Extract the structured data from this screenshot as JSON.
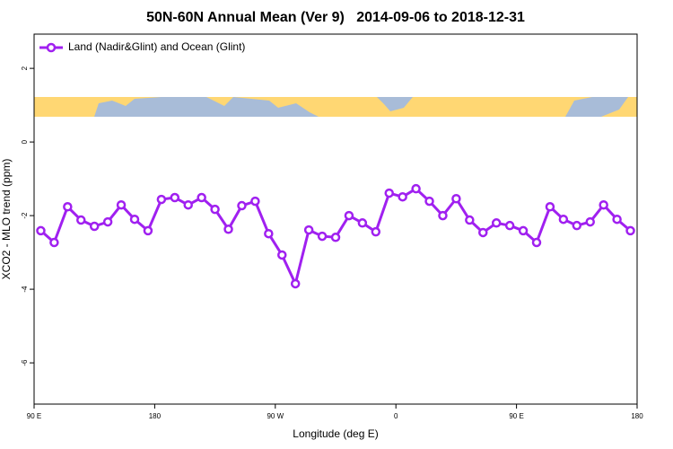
{
  "chart_data": {
    "type": "line",
    "title": "50N-60N Annual Mean (Ver 9)   2014-09-06 to 2018-12-31",
    "x_label": "Longitude (deg E)",
    "y_label": "XCO2 - MLO trend (ppm)",
    "x": [
      95,
      105,
      115,
      125,
      135,
      145,
      155,
      165,
      175,
      185,
      195,
      205,
      215,
      225,
      235,
      245,
      255,
      265,
      275,
      285,
      295,
      305,
      315,
      325,
      335,
      345,
      355,
      365,
      375,
      385,
      395,
      405,
      415,
      425,
      435,
      445,
      455,
      465,
      475,
      485,
      495,
      505,
      515,
      525,
      535
    ],
    "series": [
      {
        "name": "Land (Nadir&Glint) and Ocean (Glint)",
        "color": "#a020f0",
        "values": [
          -2.41,
          -2.73,
          -1.76,
          -2.12,
          -2.29,
          -2.17,
          -1.71,
          -2.1,
          -2.41,
          -1.56,
          -1.51,
          -1.71,
          -1.51,
          -1.83,
          -2.37,
          -1.73,
          -1.61,
          -2.49,
          -3.07,
          -3.85,
          -2.39,
          -2.56,
          -2.59,
          -2.0,
          -2.2,
          -2.44,
          -1.39,
          -1.49,
          -1.27,
          -1.61,
          -2.0,
          -1.54,
          -2.12,
          -2.46,
          -2.2,
          -2.27,
          -2.41,
          -2.73,
          -1.76,
          -2.1,
          -2.27,
          -2.17,
          -1.71,
          -2.1,
          -2.41
        ]
      }
    ],
    "xlim": [
      90,
      540
    ],
    "xticks": [
      {
        "value": 90,
        "label": "90 E"
      },
      {
        "value": 180,
        "label": "180"
      },
      {
        "value": 270,
        "label": "90 W"
      },
      {
        "value": 360,
        "label": "0"
      },
      {
        "value": 450,
        "label": "90 E"
      },
      {
        "value": 540,
        "label": "180"
      }
    ],
    "ylim": [
      -7.12,
      2.93
    ],
    "yticks": [
      2,
      0,
      -2,
      -4,
      -6
    ],
    "legend": "top-left",
    "grid": false
  }
}
